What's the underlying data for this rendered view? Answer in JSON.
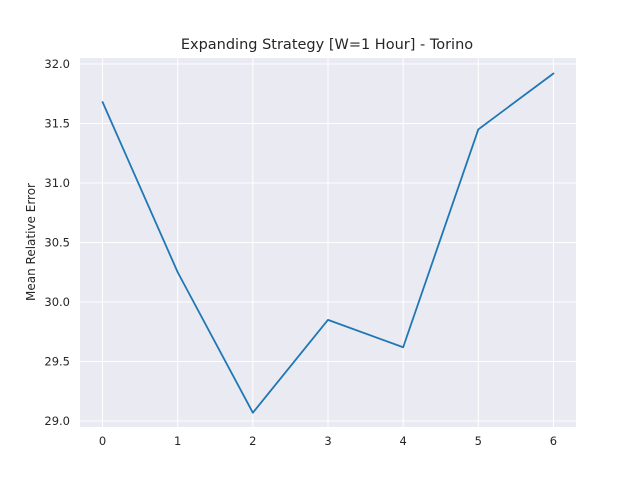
{
  "colors": {
    "plot_background": "#eaeaf2",
    "grid": "#ffffff",
    "line": "#1f77b4",
    "text": "#262626"
  },
  "chart_data": {
    "type": "line",
    "title": "Expanding Strategy [W=1 Hour] - Torino",
    "xlabel": "",
    "ylabel": "Mean Relative Error",
    "x": [
      0,
      1,
      2,
      3,
      4,
      5,
      6
    ],
    "series": [
      {
        "values": [
          31.68,
          30.25,
          29.07,
          29.85,
          29.62,
          31.45,
          31.92
        ]
      }
    ],
    "xlim": [
      -0.3,
      6.3
    ],
    "ylim": [
      28.95,
      32.05
    ],
    "xticks": [
      0,
      1,
      2,
      3,
      4,
      5,
      6
    ],
    "xtick_labels": [
      "0",
      "1",
      "2",
      "3",
      "4",
      "5",
      "6"
    ],
    "yticks": [
      29.0,
      29.5,
      30.0,
      30.5,
      31.0,
      31.5,
      32.0
    ],
    "ytick_labels": [
      "29.0",
      "29.5",
      "30.0",
      "30.5",
      "31.0",
      "31.5",
      "32.0"
    ],
    "grid": true,
    "legend": "none"
  }
}
